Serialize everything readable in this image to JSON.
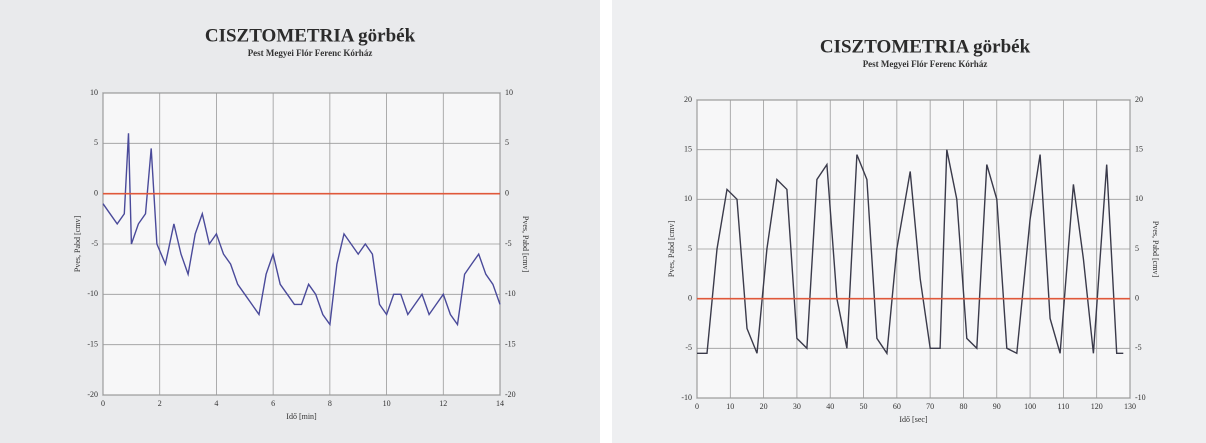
{
  "chart_data": [
    {
      "type": "line",
      "title": "CISZTOMETRIA görbék",
      "subtitle": "Pest Megyei Flór Ferenc Kórház",
      "xlabel": "Idő [min]",
      "ylabel": "Pves, Pabd [cmv]",
      "xlim": [
        0,
        14
      ],
      "ylim": [
        -20,
        10
      ],
      "xticks": [
        0,
        2,
        4,
        6,
        8,
        10,
        12,
        14
      ],
      "yticks": [
        -20,
        -15,
        -10,
        -5,
        0,
        5,
        10
      ],
      "grid": true,
      "series": [
        {
          "color": "#4a4a9a",
          "x": [
            0,
            0.25,
            0.5,
            0.75,
            0.9,
            1.0,
            1.25,
            1.5,
            1.7,
            1.9,
            2.2,
            2.5,
            2.75,
            3.0,
            3.25,
            3.5,
            3.75,
            4.0,
            4.25,
            4.5,
            4.75,
            5.0,
            5.25,
            5.5,
            5.75,
            6.0,
            6.25,
            6.5,
            6.75,
            7.0,
            7.25,
            7.5,
            7.75,
            8.0,
            8.25,
            8.5,
            8.75,
            9.0,
            9.25,
            9.5,
            9.75,
            10.0,
            10.25,
            10.5,
            10.75,
            11.0,
            11.25,
            11.5,
            11.75,
            12.0,
            12.25,
            12.5,
            12.75,
            13.0,
            13.25,
            13.5,
            13.75,
            14.0
          ],
          "values": [
            -1,
            -2,
            -3,
            -2,
            6,
            -5,
            -3,
            -2,
            4.5,
            -5,
            -7,
            -3,
            -6,
            -8,
            -4,
            -2,
            -5,
            -4,
            -6,
            -7,
            -9,
            -10,
            -11,
            -12,
            -8,
            -6,
            -9,
            -10,
            -11,
            -11,
            -9,
            -10,
            -12,
            -13,
            -7,
            -4,
            -5,
            -6,
            -5,
            -6,
            -11,
            -12,
            -10,
            -10,
            -12,
            -11,
            -10,
            -12,
            -11,
            -10,
            -12,
            -13,
            -8,
            -7,
            -6,
            -8,
            -9,
            -11
          ]
        },
        {
          "color": "#e0583a",
          "x": [
            0,
            14
          ],
          "values": [
            0,
            0
          ]
        }
      ]
    },
    {
      "type": "line",
      "title": "CISZTOMETRIA görbék",
      "subtitle": "Pest Megyei Flór Ferenc Kórház",
      "xlabel": "Idő [sec]",
      "ylabel": "Pves, Pabd [cmv]",
      "xlim": [
        0,
        130
      ],
      "ylim": [
        -10,
        20
      ],
      "xticks": [
        0,
        10,
        20,
        30,
        40,
        50,
        60,
        70,
        80,
        90,
        100,
        110,
        120,
        130
      ],
      "yticks": [
        -10,
        -5,
        0,
        5,
        10,
        15,
        20
      ],
      "grid": true,
      "series": [
        {
          "color": "#3a3a4a",
          "x": [
            0,
            3,
            6,
            9,
            12,
            15,
            18,
            21,
            24,
            27,
            30,
            33,
            36,
            39,
            42,
            45,
            48,
            51,
            54,
            57,
            60,
            64,
            67,
            70,
            73,
            75,
            78,
            81,
            84,
            87,
            90,
            93,
            96,
            100,
            103,
            106,
            109,
            113,
            116,
            119,
            123,
            126,
            128
          ],
          "values": [
            -5.5,
            -5.5,
            5,
            11,
            10,
            -3,
            -5.5,
            5,
            12,
            11,
            -4,
            -5,
            12,
            13.5,
            0,
            -5,
            14.5,
            12,
            -4,
            -5.5,
            5,
            12.8,
            2,
            -5,
            -5,
            15,
            10,
            -4,
            -5,
            13.5,
            10,
            -5,
            -5.5,
            8,
            14.5,
            -2,
            -5.5,
            11.5,
            4,
            -5.5,
            13.5,
            -5.5,
            -5.5
          ]
        },
        {
          "color": "#e0583a",
          "x": [
            0,
            130
          ],
          "values": [
            0,
            0
          ]
        }
      ]
    }
  ]
}
